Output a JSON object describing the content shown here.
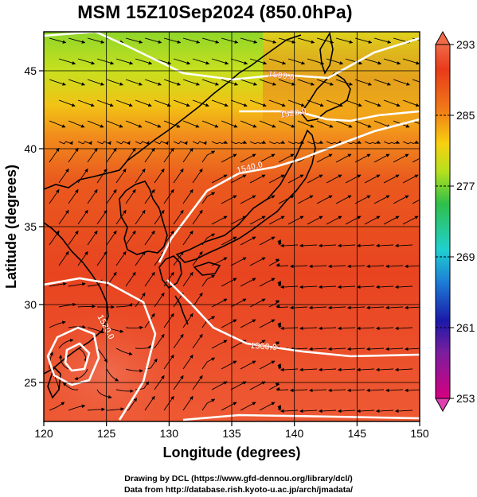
{
  "title": "MSM 15Z10Sep2024 (850.0hPa)",
  "map": {
    "type": "weather-map",
    "fields": {
      "shading": "temperature (K)",
      "vectors": "wind streamlines",
      "contours": "geopotential height (m)"
    },
    "xlabel": "Longitude (degrees)",
    "ylabel": "Latitude  (degrees)",
    "xlim": [
      120,
      150
    ],
    "ylim": [
      22.5,
      47.5
    ],
    "xticks": [
      "120",
      "125",
      "130",
      "135",
      "140",
      "145",
      "150"
    ],
    "yticks": [
      "25",
      "30",
      "35",
      "40",
      "45"
    ],
    "contours": [
      {
        "label": "1500.0",
        "value": 1500
      },
      {
        "label": "1520.0",
        "value": 1520
      },
      {
        "label": "1540.0",
        "value": 1540
      },
      {
        "label": "1560.0",
        "value": 1560
      },
      {
        "label": "1520.0",
        "value": 1520
      }
    ]
  },
  "colorbar": {
    "min": 253,
    "max": 293,
    "labels": [
      "293",
      "285",
      "277",
      "269",
      "261",
      "253"
    ],
    "colors": [
      "#d60080",
      "#1a1aa8",
      "#1d7ed6",
      "#20d0d0",
      "#32c832",
      "#b4e01e",
      "#f8d010",
      "#f07818",
      "#e83a1a",
      "#f06a48"
    ]
  },
  "footer": {
    "line1": "Drawing by DCL (https://www.gfd-dennou.org/library/dcl/)",
    "line2": "Data from http://database.rish.kyoto-u.ac.jp/arch/jmadata/"
  }
}
